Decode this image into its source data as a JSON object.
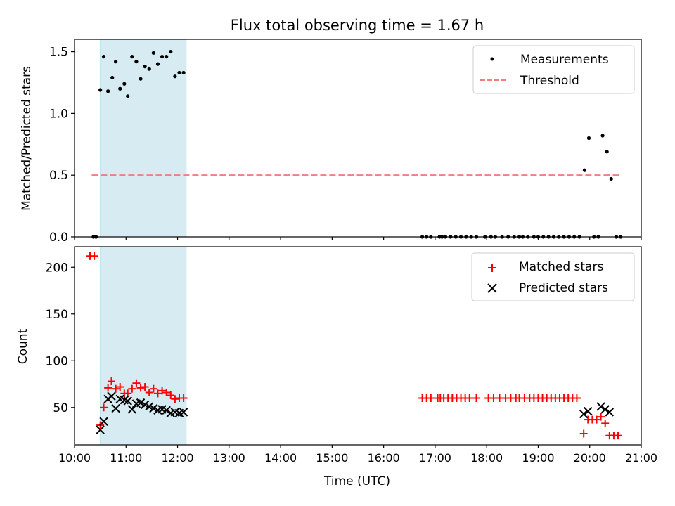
{
  "figure": {
    "title": "Flux total observing time = 1.67 h"
  },
  "chart_data": [
    {
      "type": "scatter",
      "ylabel": "Matched/Predicted stars",
      "xlim": [
        "10:00",
        "21:00"
      ],
      "ylim": [
        0,
        1.6
      ],
      "yticks": [
        "0.0",
        "0.5",
        "1.0",
        "1.5"
      ],
      "highlight_span": {
        "start": "10:30",
        "end": "12:10",
        "color": "#add8e6"
      },
      "legend": {
        "position": "upper right",
        "entries": [
          "Measurements",
          "Threshold"
        ]
      },
      "threshold": {
        "name": "Threshold",
        "y": 0.5,
        "x_start": "10:20",
        "x_end": "20:35",
        "color": "#f08080",
        "style": "dashed"
      },
      "series": [
        {
          "name": "Measurements",
          "marker": "dot",
          "color": "#000000",
          "points": [
            [
              "10:22",
              0.0
            ],
            [
              "10:25",
              0.0
            ],
            [
              "10:30",
              1.19
            ],
            [
              "10:34",
              1.46
            ],
            [
              "10:39",
              1.18
            ],
            [
              "10:44",
              1.29
            ],
            [
              "10:48",
              1.42
            ],
            [
              "10:53",
              1.2
            ],
            [
              "10:58",
              1.24
            ],
            [
              "11:02",
              1.14
            ],
            [
              "11:07",
              1.46
            ],
            [
              "11:12",
              1.42
            ],
            [
              "11:17",
              1.28
            ],
            [
              "11:22",
              1.38
            ],
            [
              "11:27",
              1.36
            ],
            [
              "11:32",
              1.49
            ],
            [
              "11:37",
              1.4
            ],
            [
              "11:42",
              1.46
            ],
            [
              "11:47",
              1.46
            ],
            [
              "11:52",
              1.5
            ],
            [
              "11:57",
              1.3
            ],
            [
              "12:02",
              1.33
            ],
            [
              "12:07",
              1.33
            ],
            [
              "16:45",
              0.0
            ],
            [
              "16:50",
              0.0
            ],
            [
              "16:55",
              0.0
            ],
            [
              "17:05",
              0.0
            ],
            [
              "17:08",
              0.0
            ],
            [
              "17:12",
              0.0
            ],
            [
              "17:18",
              0.0
            ],
            [
              "17:24",
              0.0
            ],
            [
              "17:30",
              0.0
            ],
            [
              "17:36",
              0.0
            ],
            [
              "17:42",
              0.0
            ],
            [
              "17:48",
              0.0
            ],
            [
              "17:58",
              0.0
            ],
            [
              "18:05",
              0.0
            ],
            [
              "18:10",
              0.0
            ],
            [
              "18:18",
              0.0
            ],
            [
              "18:25",
              0.0
            ],
            [
              "18:32",
              0.0
            ],
            [
              "18:38",
              0.0
            ],
            [
              "18:42",
              0.0
            ],
            [
              "18:48",
              0.0
            ],
            [
              "18:55",
              0.0
            ],
            [
              "19:00",
              0.0
            ],
            [
              "19:06",
              0.0
            ],
            [
              "19:12",
              0.0
            ],
            [
              "19:18",
              0.0
            ],
            [
              "19:24",
              0.0
            ],
            [
              "19:30",
              0.0
            ],
            [
              "19:36",
              0.0
            ],
            [
              "19:42",
              0.0
            ],
            [
              "19:48",
              0.0
            ],
            [
              "19:54",
              0.54
            ],
            [
              "19:59",
              0.8
            ],
            [
              "20:05",
              0.0
            ],
            [
              "20:10",
              0.0
            ],
            [
              "20:15",
              0.82
            ],
            [
              "20:20",
              0.69
            ],
            [
              "20:25",
              0.47
            ],
            [
              "20:31",
              0.0
            ],
            [
              "20:36",
              0.0
            ]
          ]
        }
      ]
    },
    {
      "type": "scatter",
      "xlabel": "Time (UTC)",
      "ylabel": "Count",
      "xlim": [
        "10:00",
        "21:00"
      ],
      "ylim": [
        10,
        222
      ],
      "yticks": [
        "50",
        "100",
        "150",
        "200"
      ],
      "xticks": [
        "10:00",
        "11:00",
        "12:00",
        "13:00",
        "14:00",
        "15:00",
        "16:00",
        "17:00",
        "18:00",
        "19:00",
        "20:00",
        "21:00"
      ],
      "highlight_span": {
        "start": "10:30",
        "end": "12:10",
        "color": "#add8e6"
      },
      "legend": {
        "position": "upper right",
        "entries": [
          "Matched stars",
          "Predicted stars"
        ]
      },
      "series": [
        {
          "name": "Matched stars",
          "marker": "plus",
          "color": "#ff0000",
          "points": [
            [
              "10:18",
              212
            ],
            [
              "10:23",
              212
            ],
            [
              "10:30",
              31
            ],
            [
              "10:34",
              50
            ],
            [
              "10:39",
              71
            ],
            [
              "10:43",
              78
            ],
            [
              "10:48",
              70
            ],
            [
              "10:53",
              72
            ],
            [
              "10:58",
              65
            ],
            [
              "11:02",
              65
            ],
            [
              "11:07",
              70
            ],
            [
              "11:12",
              76
            ],
            [
              "11:17",
              71
            ],
            [
              "11:22",
              72
            ],
            [
              "11:27",
              66
            ],
            [
              "11:32",
              70
            ],
            [
              "11:37",
              65
            ],
            [
              "11:42",
              68
            ],
            [
              "11:47",
              66
            ],
            [
              "11:52",
              63
            ],
            [
              "11:57",
              59
            ],
            [
              "12:02",
              60
            ],
            [
              "12:07",
              60
            ],
            [
              "16:45",
              60
            ],
            [
              "16:50",
              60
            ],
            [
              "16:55",
              60
            ],
            [
              "17:03",
              60
            ],
            [
              "17:06",
              60
            ],
            [
              "17:10",
              60
            ],
            [
              "17:15",
              60
            ],
            [
              "17:20",
              60
            ],
            [
              "17:25",
              60
            ],
            [
              "17:30",
              60
            ],
            [
              "17:35",
              60
            ],
            [
              "17:40",
              60
            ],
            [
              "17:48",
              60
            ],
            [
              "18:02",
              60
            ],
            [
              "18:08",
              60
            ],
            [
              "18:15",
              60
            ],
            [
              "18:22",
              60
            ],
            [
              "18:28",
              60
            ],
            [
              "18:34",
              60
            ],
            [
              "18:38",
              60
            ],
            [
              "18:44",
              60
            ],
            [
              "18:50",
              60
            ],
            [
              "18:55",
              60
            ],
            [
              "19:00",
              60
            ],
            [
              "19:05",
              60
            ],
            [
              "19:10",
              60
            ],
            [
              "19:15",
              60
            ],
            [
              "19:20",
              60
            ],
            [
              "19:25",
              60
            ],
            [
              "19:30",
              60
            ],
            [
              "19:35",
              60
            ],
            [
              "19:40",
              60
            ],
            [
              "19:45",
              60
            ],
            [
              "19:53",
              22
            ],
            [
              "19:58",
              37
            ],
            [
              "20:03",
              37
            ],
            [
              "20:08",
              37
            ],
            [
              "20:13",
              40
            ],
            [
              "20:18",
              33
            ],
            [
              "20:23",
              20
            ],
            [
              "20:28",
              20
            ],
            [
              "20:33",
              20
            ]
          ]
        },
        {
          "name": "Predicted stars",
          "marker": "x",
          "color": "#000000",
          "points": [
            [
              "10:30",
              26
            ],
            [
              "10:34",
              35
            ],
            [
              "10:39",
              59
            ],
            [
              "10:43",
              62
            ],
            [
              "10:48",
              49
            ],
            [
              "10:53",
              59
            ],
            [
              "10:58",
              58
            ],
            [
              "11:02",
              57
            ],
            [
              "11:07",
              48
            ],
            [
              "11:12",
              54
            ],
            [
              "11:17",
              55
            ],
            [
              "11:22",
              53
            ],
            [
              "11:27",
              51
            ],
            [
              "11:32",
              49
            ],
            [
              "11:37",
              47
            ],
            [
              "11:42",
              48
            ],
            [
              "11:47",
              47
            ],
            [
              "11:52",
              44
            ],
            [
              "11:57",
              45
            ],
            [
              "12:02",
              44
            ],
            [
              "12:07",
              45
            ],
            [
              "19:53",
              43
            ],
            [
              "19:58",
              46
            ],
            [
              "20:13",
              51
            ],
            [
              "20:18",
              48
            ],
            [
              "20:23",
              45
            ]
          ]
        }
      ]
    }
  ]
}
